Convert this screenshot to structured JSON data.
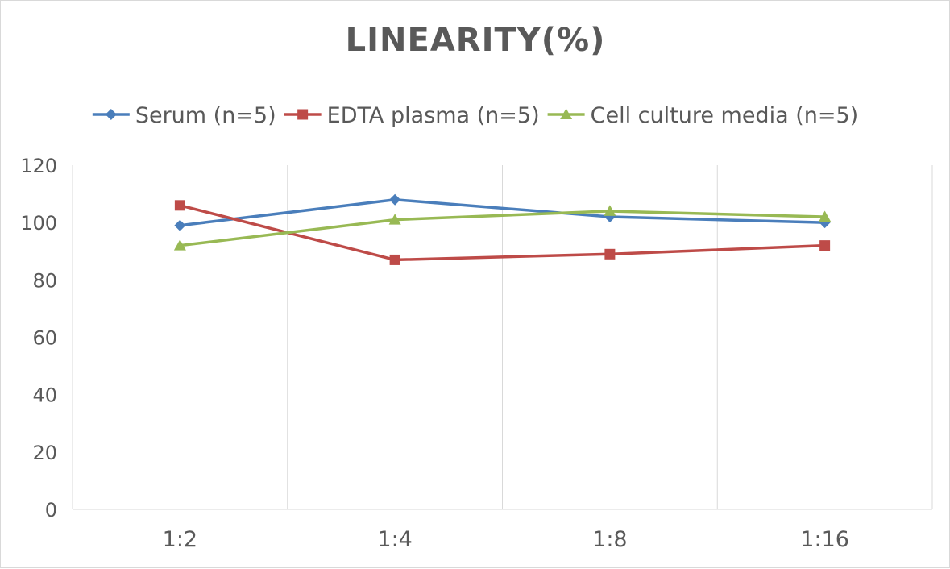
{
  "chart_data": {
    "type": "line",
    "title": "LINEARITY(%)",
    "xlabel": "",
    "ylabel": "",
    "categories": [
      "1:2",
      "1:4",
      "1:8",
      "1:16"
    ],
    "ylim": [
      0,
      120
    ],
    "yticks": [
      0,
      20,
      40,
      60,
      80,
      100,
      120
    ],
    "grid": "vertical",
    "legend_position": "top",
    "series": [
      {
        "name": "Serum (n=5)",
        "values": [
          99,
          108,
          102,
          100
        ],
        "color": "#4a7ebb",
        "marker": "diamond"
      },
      {
        "name": "EDTA plasma (n=5)",
        "values": [
          106,
          87,
          89,
          92
        ],
        "color": "#be4b48",
        "marker": "square"
      },
      {
        "name": "Cell culture media (n=5)",
        "values": [
          92,
          101,
          104,
          102
        ],
        "color": "#98b954",
        "marker": "triangle"
      }
    ]
  }
}
